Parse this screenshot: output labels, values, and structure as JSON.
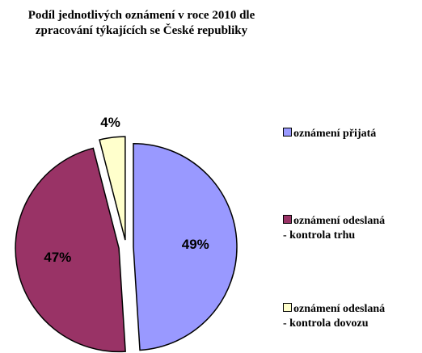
{
  "chart_data": {
    "type": "pie",
    "title": "Podíl jednotlivých oznámení v roce 2010 dle\nzpracování týkajících se České republiky",
    "categories": [
      "oznámení přijatá",
      "oznámení odeslaná\n - kontrola trhu",
      "oznámení odeslaná\n - kontrola dovozu"
    ],
    "values": [
      49,
      47,
      4
    ],
    "value_labels": [
      "49%",
      "47%",
      "4%"
    ],
    "colors": [
      "#9999ff",
      "#993366",
      "#ffffcc"
    ],
    "legend": "right"
  }
}
